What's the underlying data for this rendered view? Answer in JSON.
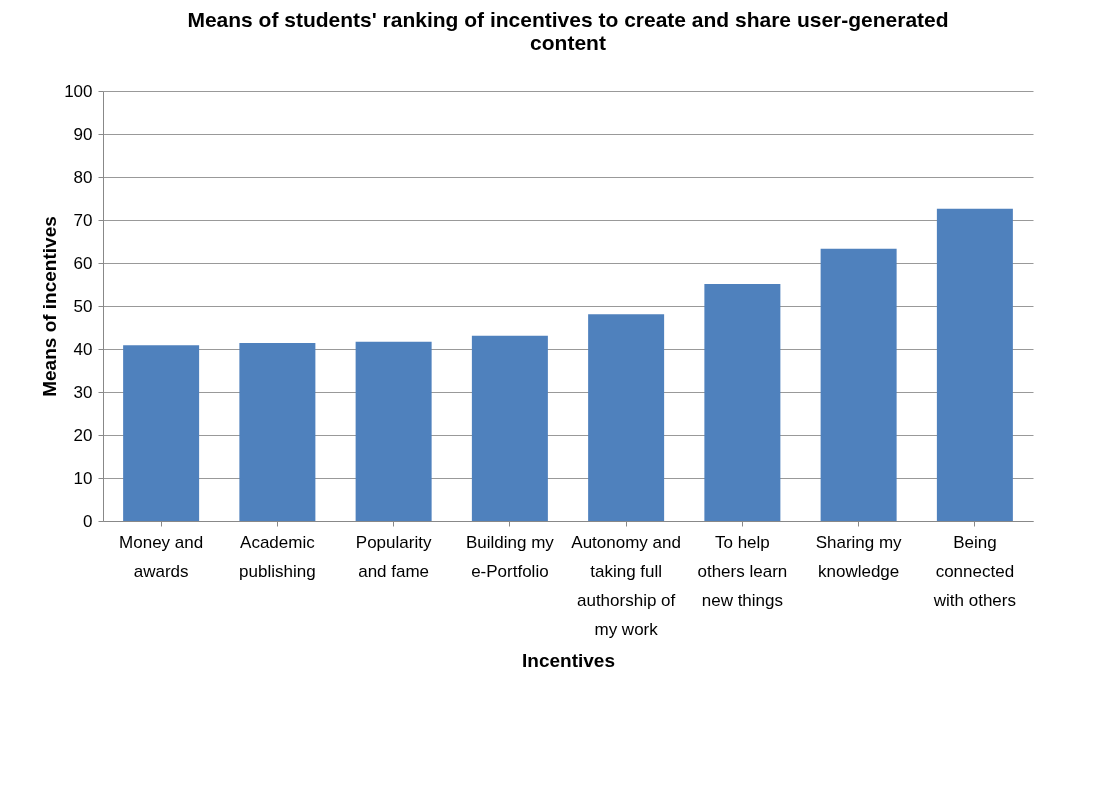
{
  "chart_data": {
    "type": "bar",
    "title": "Means of students' ranking of incentives to create and share user-generated content",
    "xlabel": "Incentives",
    "ylabel": "Means of incentives",
    "categories": [
      "Money and awards",
      "Academic publishing",
      "Popularity and fame",
      "Building my e-Portfolio",
      "Autonomy and taking full authorship of my work",
      "To help others learn new things",
      "Sharing my knowledge",
      "Being connected with others"
    ],
    "values": [
      40.9,
      41.4,
      41.7,
      43.1,
      48.1,
      55.1,
      63.3,
      72.6
    ],
    "color": "#4f81bd",
    "ylim": [
      0,
      100
    ],
    "yticks": [
      0,
      10,
      20,
      30,
      40,
      50,
      60,
      70,
      80,
      90,
      100
    ],
    "grid": "y"
  }
}
